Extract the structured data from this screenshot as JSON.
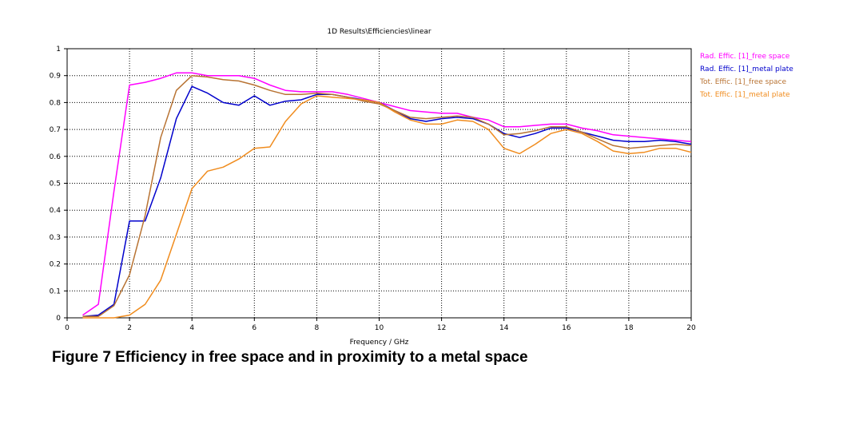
{
  "caption": "Figure 7 Efficiency in free space and in proximity to a metal space",
  "chart_data": {
    "type": "line",
    "title": "1D Results\\Efficiencies\\linear",
    "xlabel": "Frequency / GHz",
    "ylabel": "",
    "xlim": [
      0,
      20
    ],
    "ylim": [
      0,
      1
    ],
    "xticks": [
      0,
      2,
      4,
      6,
      8,
      10,
      12,
      14,
      16,
      18,
      20
    ],
    "yticks": [
      0,
      0.1,
      0.2,
      0.3,
      0.4,
      0.5,
      0.6,
      0.7,
      0.8,
      0.9,
      1
    ],
    "ytick_labels": [
      "0",
      "0.1",
      "0.2",
      "0.3",
      "0.4",
      "0.5",
      "0.6",
      "0.7",
      "0.8",
      "0.9",
      "1"
    ],
    "grid": true,
    "legend_position": "right",
    "series": [
      {
        "name": "Rad. Effic. [1]_free space",
        "color": "#ff00ff",
        "x": [
          0.5,
          1,
          1.5,
          2,
          2.5,
          3,
          3.5,
          4,
          4.5,
          5,
          5.5,
          6,
          6.5,
          7,
          7.5,
          8,
          8.5,
          9,
          9.5,
          10,
          10.5,
          11,
          11.5,
          12,
          12.5,
          13,
          13.5,
          14,
          14.5,
          15,
          15.5,
          16,
          16.5,
          17,
          17.5,
          18,
          18.5,
          19,
          19.5,
          20
        ],
        "y": [
          0.01,
          0.05,
          0.47,
          0.865,
          0.875,
          0.89,
          0.91,
          0.91,
          0.9,
          0.9,
          0.9,
          0.89,
          0.865,
          0.845,
          0.84,
          0.84,
          0.84,
          0.83,
          0.815,
          0.8,
          0.785,
          0.77,
          0.765,
          0.76,
          0.76,
          0.745,
          0.735,
          0.71,
          0.71,
          0.715,
          0.72,
          0.72,
          0.705,
          0.695,
          0.68,
          0.675,
          0.67,
          0.665,
          0.66,
          0.655
        ]
      },
      {
        "name": "Rad. Effic. [1]_metal plate",
        "color": "#0000cc",
        "x": [
          0.5,
          1,
          1.5,
          2,
          2.5,
          3,
          3.5,
          4,
          4.5,
          5,
          5.5,
          6,
          6.5,
          7,
          7.5,
          8,
          8.5,
          9,
          9.5,
          10,
          10.5,
          11,
          11.5,
          12,
          12.5,
          13,
          13.5,
          14,
          14.5,
          15,
          15.5,
          16,
          16.5,
          17,
          17.5,
          18,
          18.5,
          19,
          19.5,
          20
        ],
        "y": [
          0.005,
          0.01,
          0.05,
          0.36,
          0.36,
          0.52,
          0.74,
          0.86,
          0.835,
          0.8,
          0.79,
          0.825,
          0.79,
          0.805,
          0.81,
          0.83,
          0.83,
          0.82,
          0.81,
          0.8,
          0.77,
          0.74,
          0.73,
          0.74,
          0.745,
          0.74,
          0.72,
          0.685,
          0.67,
          0.685,
          0.705,
          0.705,
          0.69,
          0.675,
          0.66,
          0.655,
          0.655,
          0.66,
          0.655,
          0.645
        ]
      },
      {
        "name": "Tot. Effic. [1]_free space",
        "color": "#b87333",
        "x": [
          0.5,
          1,
          1.5,
          2,
          2.5,
          3,
          3.5,
          4,
          4.5,
          5,
          5.5,
          6,
          6.5,
          7,
          7.5,
          8,
          8.5,
          9,
          9.5,
          10,
          10.5,
          11,
          11.5,
          12,
          12.5,
          13,
          13.5,
          14,
          14.5,
          15,
          15.5,
          16,
          16.5,
          17,
          17.5,
          18,
          18.5,
          19,
          19.5,
          20
        ],
        "y": [
          0.005,
          0.005,
          0.045,
          0.16,
          0.38,
          0.67,
          0.845,
          0.9,
          0.895,
          0.885,
          0.88,
          0.865,
          0.845,
          0.83,
          0.83,
          0.835,
          0.83,
          0.82,
          0.805,
          0.795,
          0.77,
          0.745,
          0.74,
          0.745,
          0.75,
          0.745,
          0.72,
          0.68,
          0.685,
          0.695,
          0.71,
          0.71,
          0.69,
          0.665,
          0.64,
          0.63,
          0.635,
          0.64,
          0.645,
          0.64
        ]
      },
      {
        "name": "Tot. Effic. [1]_metal plate",
        "color": "#f08c1e",
        "x": [
          0.5,
          1,
          1.5,
          2,
          2.5,
          3,
          3.5,
          4,
          4.5,
          5,
          5.5,
          6,
          6.5,
          7,
          7.5,
          8,
          8.5,
          9,
          9.5,
          10,
          10.5,
          11,
          11.5,
          12,
          12.5,
          13,
          13.5,
          14,
          14.5,
          15,
          15.5,
          16,
          16.5,
          17,
          17.5,
          18,
          18.5,
          19,
          19.5,
          20
        ],
        "y": [
          0,
          0,
          0,
          0.01,
          0.05,
          0.14,
          0.31,
          0.48,
          0.545,
          0.56,
          0.59,
          0.63,
          0.635,
          0.73,
          0.795,
          0.825,
          0.82,
          0.815,
          0.81,
          0.8,
          0.765,
          0.735,
          0.72,
          0.72,
          0.735,
          0.73,
          0.7,
          0.63,
          0.61,
          0.645,
          0.685,
          0.7,
          0.685,
          0.655,
          0.62,
          0.61,
          0.615,
          0.63,
          0.63,
          0.615
        ]
      }
    ]
  }
}
